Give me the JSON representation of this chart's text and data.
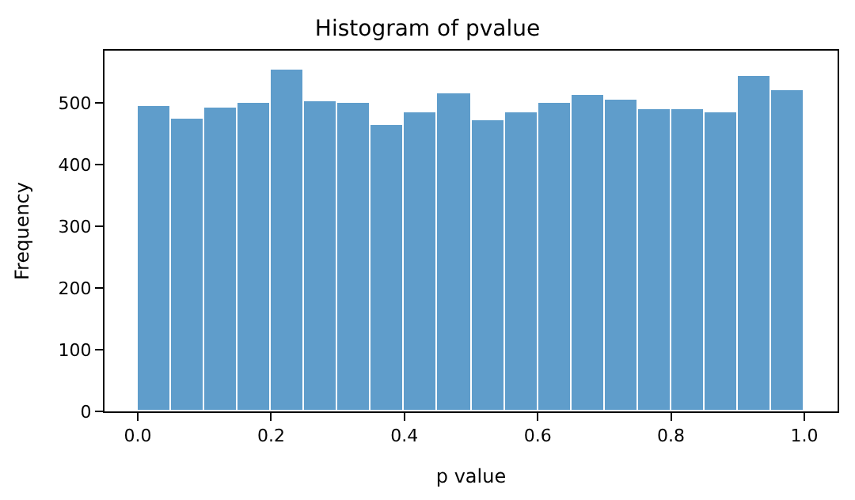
{
  "chart_data": {
    "type": "histogram",
    "title": "Histogram of pvalue",
    "xlabel": "p value",
    "ylabel": "Frequency",
    "bins": [
      0.0,
      0.05,
      0.1,
      0.15,
      0.2,
      0.25,
      0.3,
      0.35,
      0.4,
      0.45,
      0.5,
      0.55,
      0.6,
      0.65,
      0.7,
      0.75,
      0.8,
      0.85,
      0.9,
      0.95,
      1.0
    ],
    "values": [
      495,
      474,
      492,
      500,
      555,
      502,
      500,
      464,
      484,
      515,
      472,
      484,
      500,
      512,
      505,
      490,
      490,
      485,
      545,
      520
    ],
    "color": "#5f9dcb",
    "xlim": [
      -0.05,
      1.05
    ],
    "ylim": [
      0,
      585
    ],
    "xticks": [
      {
        "value": 0,
        "label": "0.0"
      },
      0.2,
      0.4,
      0.6,
      0.8,
      {
        "value": 1,
        "label": "1.0"
      }
    ],
    "yticks": [
      0,
      100,
      200,
      300,
      400,
      500
    ]
  }
}
